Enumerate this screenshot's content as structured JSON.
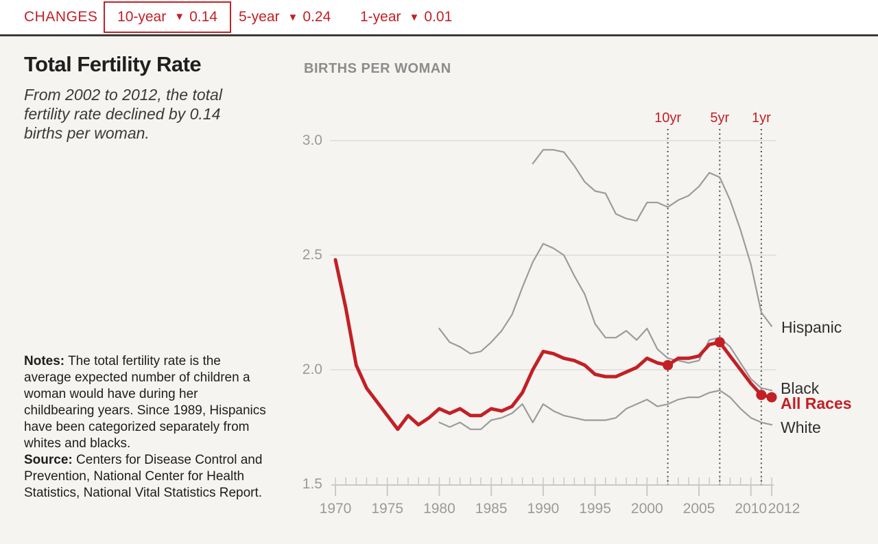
{
  "header": {
    "changes_label": "CHANGES",
    "triangle_icon": "▼",
    "items": [
      {
        "label": "10-year",
        "direction": "down",
        "value": "0.14",
        "selected": true
      },
      {
        "label": "5-year",
        "direction": "down",
        "value": "0.24",
        "selected": false
      },
      {
        "label": "1-year",
        "direction": "down",
        "value": "0.01",
        "selected": false
      }
    ]
  },
  "panel": {
    "title": "Total Fertility Rate",
    "subtitle": "From 2002 to 2012, the total fertility rate declined by 0.14 births per woman.",
    "notes_label": "Notes:",
    "notes_text": "The total fertility rate is the average expected number of children a woman would have during her childbearing years. Since 1989, Hispanics have been categorized separately from whites and blacks.",
    "source_label": "Source:",
    "source_text": "Centers for Disease Control and Prevention, National Center for Health Statistics, National Vital Statistics Report."
  },
  "colors": {
    "accent_red": "#c22025",
    "series_gray": "#9b9b9b",
    "grid": "#dcdcda",
    "axis": "#c9c9c7",
    "dotted_ref": "#4b4b4b"
  },
  "chart_data": {
    "type": "line",
    "title": "BIRTHS PER WOMAN",
    "ylabel": "births per woman",
    "xlim": [
      1970,
      2012
    ],
    "ylim": [
      1.5,
      3.0
    ],
    "grid_values": [
      3.0,
      2.5,
      2.0
    ],
    "y_ticks": [
      {
        "label": "3.0",
        "value": 3.0
      },
      {
        "label": "2.5",
        "value": 2.5
      },
      {
        "label": "2.0",
        "value": 2.0
      },
      {
        "label": "1.5",
        "value": 1.5
      }
    ],
    "x_ticks": [
      1970,
      1975,
      1980,
      1985,
      1990,
      1995,
      2000,
      2005,
      2010,
      2012
    ],
    "reference_lines": [
      {
        "label": "10yr",
        "year": 2002
      },
      {
        "label": "5yr",
        "year": 2007
      },
      {
        "label": "1yr",
        "year": 2011
      }
    ],
    "years": [
      1970,
      1971,
      1972,
      1973,
      1974,
      1975,
      1976,
      1977,
      1978,
      1979,
      1980,
      1981,
      1982,
      1983,
      1984,
      1985,
      1986,
      1987,
      1988,
      1989,
      1990,
      1991,
      1992,
      1993,
      1994,
      1995,
      1996,
      1997,
      1998,
      1999,
      2000,
      2001,
      2002,
      2003,
      2004,
      2005,
      2006,
      2007,
      2008,
      2009,
      2010,
      2011,
      2012
    ],
    "series": [
      {
        "name": "Hispanic",
        "color": "#9b9b9b",
        "emphasis": false,
        "values": [
          null,
          null,
          null,
          null,
          null,
          null,
          null,
          null,
          null,
          null,
          null,
          null,
          null,
          null,
          null,
          null,
          null,
          null,
          null,
          2.9,
          2.96,
          2.96,
          2.95,
          2.89,
          2.82,
          2.78,
          2.77,
          2.68,
          2.66,
          2.65,
          2.73,
          2.73,
          2.71,
          2.74,
          2.76,
          2.8,
          2.86,
          2.84,
          2.74,
          2.61,
          2.46,
          2.25,
          2.19
        ]
      },
      {
        "name": "Black",
        "color": "#9b9b9b",
        "emphasis": false,
        "values": [
          null,
          null,
          null,
          null,
          null,
          null,
          null,
          null,
          null,
          null,
          2.18,
          2.12,
          2.1,
          2.07,
          2.08,
          2.12,
          2.17,
          2.24,
          2.36,
          2.47,
          2.55,
          2.53,
          2.5,
          2.41,
          2.33,
          2.2,
          2.14,
          2.14,
          2.17,
          2.13,
          2.18,
          2.09,
          2.05,
          2.04,
          2.03,
          2.04,
          2.13,
          2.14,
          2.1,
          2.03,
          1.96,
          1.92,
          1.91
        ]
      },
      {
        "name": "White",
        "color": "#9b9b9b",
        "emphasis": false,
        "values": [
          null,
          null,
          null,
          null,
          null,
          null,
          null,
          null,
          null,
          null,
          1.77,
          1.75,
          1.77,
          1.74,
          1.74,
          1.78,
          1.79,
          1.81,
          1.85,
          1.77,
          1.85,
          1.82,
          1.8,
          1.79,
          1.78,
          1.78,
          1.78,
          1.79,
          1.83,
          1.85,
          1.87,
          1.84,
          1.85,
          1.87,
          1.88,
          1.88,
          1.9,
          1.91,
          1.88,
          1.83,
          1.79,
          1.77,
          1.76
        ]
      },
      {
        "name": "All Races",
        "color": "#c22025",
        "emphasis": true,
        "values": [
          2.48,
          2.27,
          2.02,
          1.92,
          1.86,
          1.8,
          1.74,
          1.8,
          1.76,
          1.79,
          1.83,
          1.81,
          1.83,
          1.8,
          1.8,
          1.83,
          1.82,
          1.84,
          1.9,
          2.0,
          2.08,
          2.07,
          2.05,
          2.04,
          2.02,
          1.98,
          1.97,
          1.97,
          1.99,
          2.01,
          2.05,
          2.03,
          2.02,
          2.05,
          2.05,
          2.06,
          2.11,
          2.12,
          2.06,
          2.0,
          1.94,
          1.89,
          1.88
        ]
      }
    ],
    "markers": {
      "series": "All Races",
      "years": [
        2002,
        2007,
        2011,
        2012
      ]
    },
    "legend_position": "right"
  }
}
